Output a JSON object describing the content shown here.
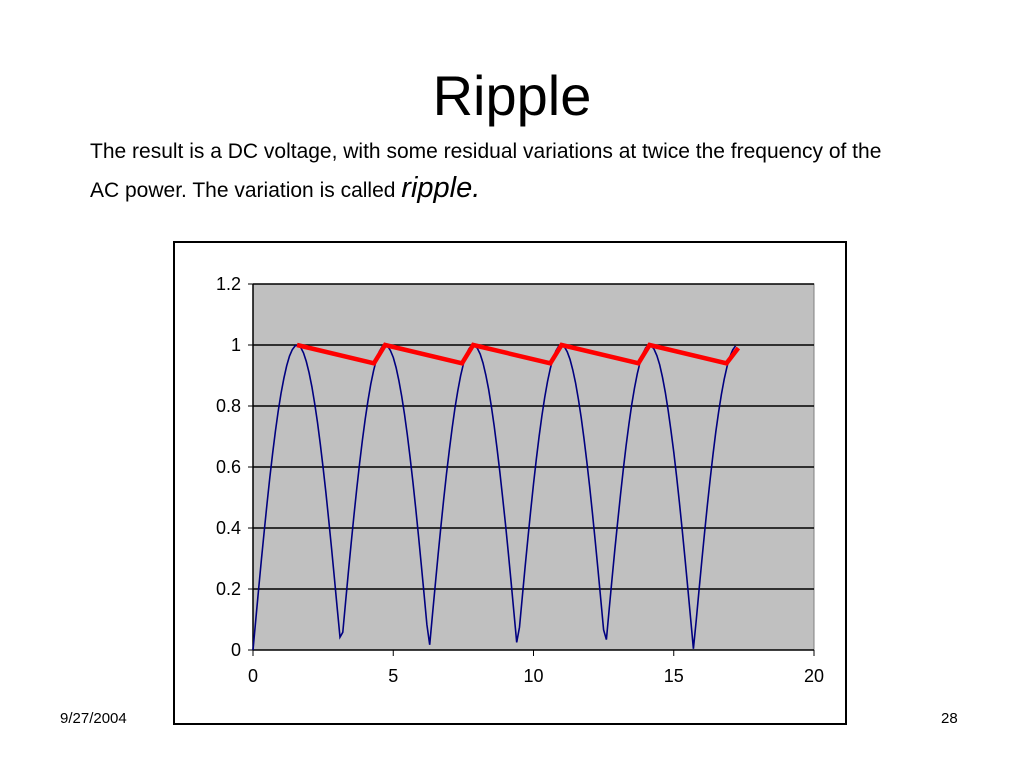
{
  "slide": {
    "title": "Ripple",
    "text_before": "The result is a DC voltage, with some residual variations at twice the frequency of the AC power.  The variation is called ",
    "text_emphasis": "ripple.",
    "date": "9/27/2004",
    "page_number": "28"
  },
  "chart_data": {
    "type": "line",
    "title": "",
    "xlabel": "",
    "ylabel": "",
    "xlim": [
      0,
      20
    ],
    "ylim": [
      0,
      1.2
    ],
    "x_ticks": [
      0,
      5,
      10,
      15,
      20
    ],
    "y_ticks": [
      0,
      0.2,
      0.4,
      0.6,
      0.8,
      1,
      1.2
    ],
    "x_tick_labels": [
      "0",
      "5",
      "10",
      "15",
      "20"
    ],
    "y_tick_labels": [
      "0",
      "0.2",
      "0.4",
      "0.6",
      "0.8",
      "1",
      "1.2"
    ],
    "grid": true,
    "legend": "none",
    "plot_background": "#c0c0c0",
    "series": [
      {
        "style": "rectified-sine",
        "color": "#000080",
        "x": [
          0,
          0.1,
          0.2,
          0.3,
          0.4,
          0.5,
          0.6,
          0.7,
          0.8,
          0.9,
          1.0,
          1.1,
          1.2,
          1.3,
          1.4,
          1.5,
          1.6,
          1.7,
          1.8,
          1.9,
          2.0,
          2.1,
          2.2,
          2.3,
          2.4,
          2.5,
          2.6,
          2.7,
          2.8,
          2.9,
          3.0,
          3.1,
          3.2,
          3.3,
          3.4,
          3.5,
          3.6,
          3.7,
          3.8,
          3.9,
          4.0,
          4.1,
          4.2,
          4.3,
          4.4,
          4.5,
          4.6,
          4.7,
          4.8,
          4.9,
          5.0,
          5.1,
          5.2,
          5.3,
          5.4,
          5.5,
          5.6,
          5.7,
          5.8,
          5.9,
          6.0,
          6.1,
          6.2,
          6.3,
          6.4,
          6.5,
          6.6,
          6.7,
          6.8,
          6.9,
          7.0,
          7.1,
          7.2,
          7.3,
          7.4,
          7.5,
          7.6,
          7.7,
          7.8,
          7.9,
          8.0,
          8.1,
          8.2,
          8.3,
          8.4,
          8.5,
          8.6,
          8.7,
          8.8,
          8.9,
          9.0,
          9.1,
          9.2,
          9.3,
          9.4,
          9.5,
          9.6,
          9.7,
          9.8,
          9.9,
          10.0,
          10.1,
          10.2,
          10.3,
          10.4,
          10.5,
          10.6,
          10.7,
          10.8,
          10.9,
          11.0,
          11.1,
          11.2,
          11.3,
          11.4,
          11.5,
          11.6,
          11.7,
          11.8,
          11.9,
          12.0,
          12.1,
          12.2,
          12.3,
          12.4,
          12.5,
          12.6,
          12.7,
          12.8,
          12.9,
          13.0,
          13.1,
          13.2,
          13.3,
          13.4,
          13.5,
          13.6,
          13.7,
          13.8,
          13.9,
          14.0,
          14.1,
          14.2,
          14.3,
          14.4,
          14.5,
          14.6,
          14.7,
          14.8,
          14.9,
          15.0,
          15.1,
          15.2,
          15.3,
          15.4,
          15.5,
          15.6,
          15.7,
          15.8,
          15.9,
          16.0,
          16.1,
          16.2,
          16.3,
          16.4,
          16.5,
          16.6,
          16.7,
          16.8,
          16.9,
          17.0,
          17.1,
          17.2
        ],
        "y": [
          0.0,
          0.1,
          0.199,
          0.296,
          0.389,
          0.479,
          0.565,
          0.644,
          0.717,
          0.783,
          0.841,
          0.891,
          0.932,
          0.964,
          0.985,
          0.997,
          1.0,
          0.992,
          0.974,
          0.946,
          0.909,
          0.863,
          0.808,
          0.746,
          0.675,
          0.598,
          0.516,
          0.427,
          0.335,
          0.239,
          0.141,
          0.042,
          0.058,
          0.158,
          0.256,
          0.351,
          0.443,
          0.53,
          0.612,
          0.688,
          0.757,
          0.818,
          0.872,
          0.916,
          0.952,
          0.978,
          0.994,
          1.0,
          0.996,
          0.982,
          0.959,
          0.926,
          0.883,
          0.832,
          0.773,
          0.706,
          0.631,
          0.551,
          0.465,
          0.374,
          0.279,
          0.182,
          0.083,
          0.017,
          0.117,
          0.215,
          0.312,
          0.405,
          0.494,
          0.578,
          0.657,
          0.729,
          0.794,
          0.85,
          0.899,
          0.938,
          0.968,
          0.988,
          0.998,
          0.999,
          0.989,
          0.97,
          0.941,
          0.902,
          0.855,
          0.798,
          0.734,
          0.662,
          0.585,
          0.501,
          0.412,
          0.319,
          0.223,
          0.124,
          0.025,
          0.075,
          0.174,
          0.272,
          0.366,
          0.457,
          0.544,
          0.625,
          0.7,
          0.768,
          0.828,
          0.88,
          0.923,
          0.957,
          0.981,
          0.996,
          1.0,
          0.994,
          0.978,
          0.953,
          0.918,
          0.875,
          0.822,
          0.762,
          0.693,
          0.618,
          0.537,
          0.45,
          0.358,
          0.263,
          0.165,
          0.066,
          0.034,
          0.134,
          0.232,
          0.328,
          0.421,
          0.509,
          0.592,
          0.67,
          0.74,
          0.804,
          0.859,
          0.906,
          0.944,
          0.972,
          0.991,
          0.999,
          0.998,
          0.986,
          0.965,
          0.935,
          0.894,
          0.845,
          0.787,
          0.721,
          0.648,
          0.569,
          0.484,
          0.394,
          0.3,
          0.203,
          0.104,
          0.004,
          0.096,
          0.195,
          0.292,
          0.386,
          0.476,
          0.561,
          0.641,
          0.715,
          0.78,
          0.838,
          0.888,
          0.929,
          0.961,
          0.984,
          0.997
        ]
      },
      {
        "style": "ripple",
        "color": "#ff0000",
        "x": [
          1.57,
          4.31,
          4.71,
          7.45,
          7.85,
          10.6,
          11.0,
          13.74,
          14.14,
          16.88,
          17.3
        ],
        "y": [
          1.0,
          0.94,
          1.0,
          0.94,
          1.0,
          0.94,
          1.0,
          0.94,
          1.0,
          0.94,
          0.99
        ]
      }
    ]
  }
}
